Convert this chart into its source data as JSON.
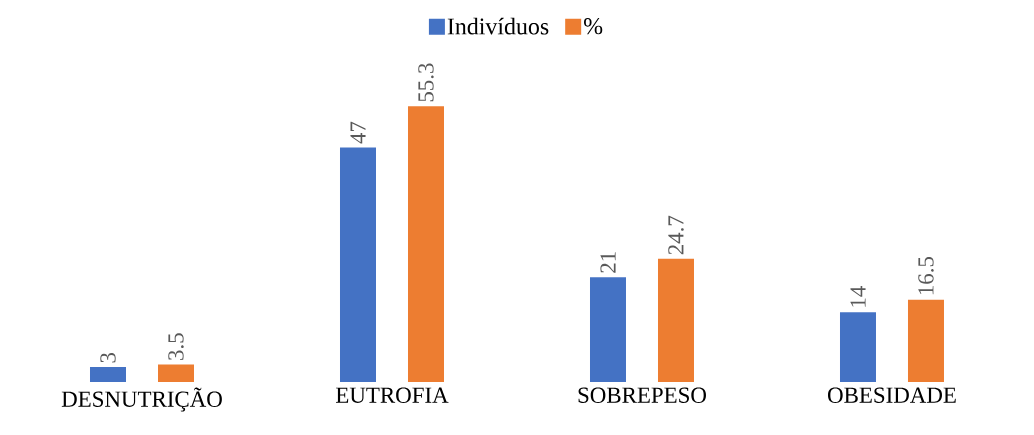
{
  "chart_data": {
    "type": "bar",
    "categories": [
      "DESNUTRIÇÃO",
      "EUTROFIA",
      "SOBREPESO",
      "OBESIDADE"
    ],
    "series": [
      {
        "name": "Indivíduos",
        "color": "#4472c4",
        "values": [
          3,
          47,
          21,
          14
        ]
      },
      {
        "name": "%",
        "color": "#ed7d31",
        "values": [
          3.5,
          55.3,
          24.7,
          16.5
        ]
      }
    ],
    "data_labels": true,
    "legend": "top"
  }
}
